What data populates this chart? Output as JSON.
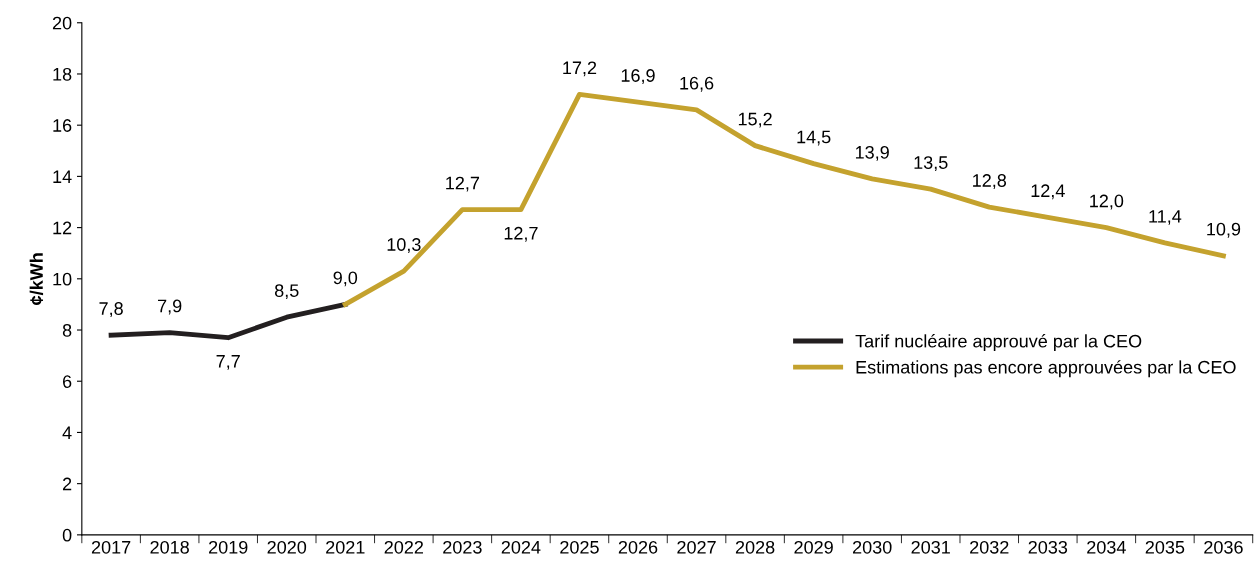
{
  "chart_data": {
    "type": "line",
    "ylabel": "¢/kWh",
    "categories": [
      "2017",
      "2018",
      "2019",
      "2020",
      "2021",
      "2022",
      "2023",
      "2024",
      "2025",
      "2026",
      "2027",
      "2028",
      "2029",
      "2030",
      "2031",
      "2032",
      "2033",
      "2034",
      "2035",
      "2036"
    ],
    "series": [
      {
        "name": "Tarif nucléaire approuvé par la CEO",
        "color": "#231f20",
        "values": [
          7.8,
          7.9,
          7.7,
          8.5,
          9.0,
          null,
          null,
          null,
          null,
          null,
          null,
          null,
          null,
          null,
          null,
          null,
          null,
          null,
          null,
          null
        ],
        "value_labels": [
          "7,8",
          "7,9",
          "7,7",
          "8,5",
          "9,0",
          null,
          null,
          null,
          null,
          null,
          null,
          null,
          null,
          null,
          null,
          null,
          null,
          null,
          null,
          null
        ]
      },
      {
        "name": "Estimations pas encore approuvées par la CEO",
        "color": "#c4a22e",
        "values": [
          null,
          null,
          null,
          null,
          9.0,
          10.3,
          12.7,
          12.7,
          17.2,
          16.9,
          16.6,
          15.2,
          14.5,
          13.9,
          13.5,
          12.8,
          12.4,
          12.0,
          11.4,
          10.9
        ],
        "value_labels": [
          null,
          null,
          null,
          null,
          null,
          "10,3",
          "12,7",
          "12,7",
          "17,2",
          "16,9",
          "16,6",
          "15,2",
          "14,5",
          "13,9",
          "13,5",
          "12,8",
          "12,4",
          "12,0",
          "11,4",
          "10,9"
        ]
      }
    ],
    "ylim": [
      0,
      20
    ],
    "yticks": [
      0,
      2,
      4,
      6,
      8,
      10,
      12,
      14,
      16,
      18,
      20
    ],
    "legend": "center right",
    "marker": "none",
    "line_style": "solid",
    "grid": false
  }
}
